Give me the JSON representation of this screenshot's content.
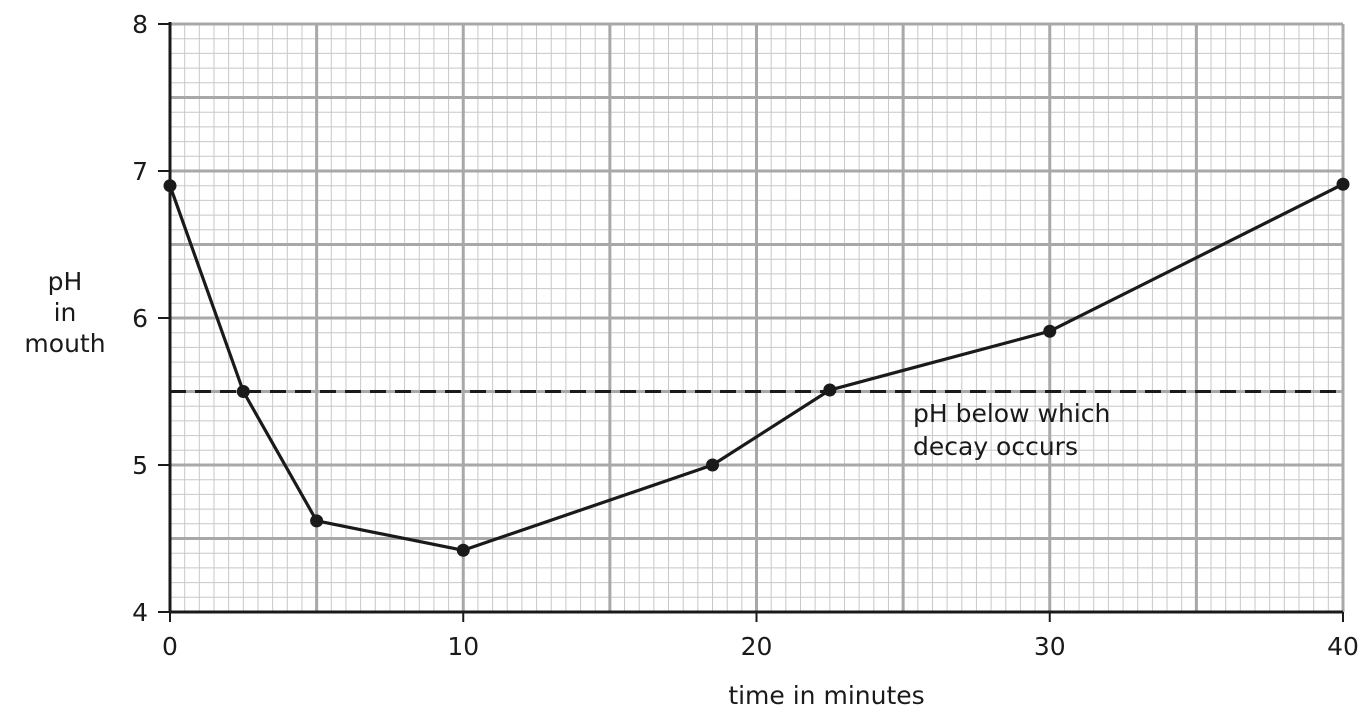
{
  "chart_data": {
    "type": "line",
    "title": "",
    "xlabel": "time in minutes",
    "ylabel_lines": [
      "pH",
      "in",
      "mouth"
    ],
    "xlim": [
      0,
      40
    ],
    "ylim": [
      4,
      8
    ],
    "x_ticks": [
      0,
      10,
      20,
      30,
      40
    ],
    "y_ticks": [
      4,
      5,
      6,
      7,
      8
    ],
    "grid": "fine graph paper (minor 0.5 min / 0.1 pH, major 5 min / 0.5 pH)",
    "series": [
      {
        "x": [
          0,
          2.5,
          5,
          10,
          18.5,
          22.5,
          30,
          40
        ],
        "y": [
          6.9,
          5.5,
          4.62,
          4.42,
          5.0,
          5.51,
          5.91,
          6.91
        ]
      }
    ],
    "reference_line": {
      "y": 5.5,
      "style": "dashed",
      "label_lines": [
        "pH below which",
        "decay occurs"
      ]
    },
    "colors": {
      "line": "#1a1a1a",
      "grid_minor": "#c8c8c8",
      "grid_major": "#a8a8a8"
    }
  }
}
